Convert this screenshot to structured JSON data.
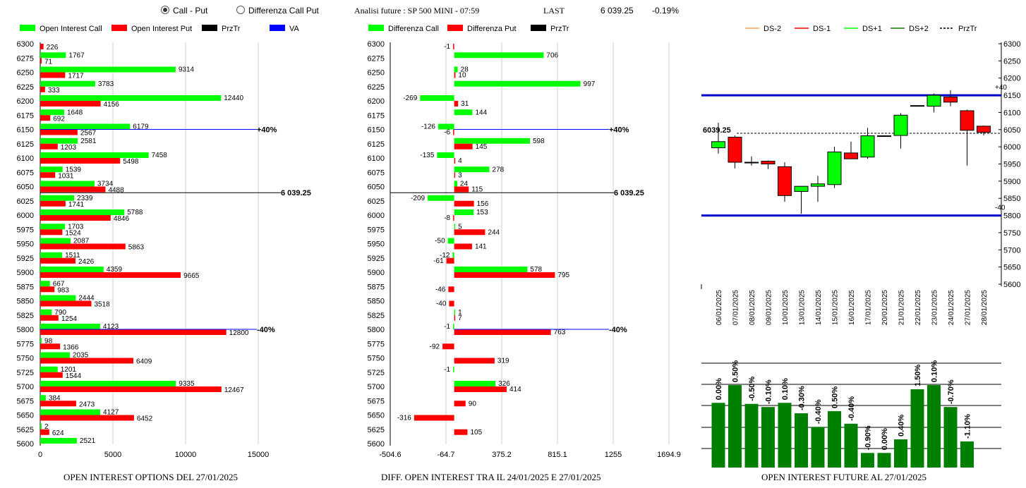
{
  "header": {
    "radio_options": [
      {
        "label": "Call - Put",
        "selected": true
      },
      {
        "label": "Differenza Call Put",
        "selected": false
      }
    ],
    "title": "Analisi future : SP 500 MINI - 07:59",
    "last_label": "LAST",
    "last_value": "6 039.25",
    "change": "-0.19%"
  },
  "footers": {
    "left": "OPEN INTEREST OPTIONS DEL 27/01/2025",
    "middle": "DIFF. OPEN INTEREST TRA IL 24/01/2025 E 27/01/2025",
    "right": "OPEN INTEREST FUTURE AL 27/01/2025"
  },
  "colors": {
    "call": "#00ff00",
    "put": "#ff0000",
    "price": "#000000",
    "va": "#0000ff",
    "oi_bar": "#008000",
    "level_line": "#0000cc"
  },
  "chart_data": [
    {
      "type": "bar",
      "orientation": "horizontal",
      "legend": [
        {
          "name": "Open Interest Call",
          "color": "#00ff00"
        },
        {
          "name": "Open Interest Put",
          "color": "#ff0000"
        },
        {
          "name": "PrzTr",
          "color": "#000000"
        },
        {
          "name": "VA",
          "color": "#0000ff"
        }
      ],
      "categories": [
        6300,
        6275,
        6250,
        6225,
        6200,
        6175,
        6150,
        6125,
        6100,
        6075,
        6050,
        6025,
        6000,
        5975,
        5950,
        5925,
        5900,
        5875,
        5850,
        5825,
        5800,
        5775,
        5750,
        5725,
        5700,
        5675,
        5650,
        5625,
        5600
      ],
      "series": [
        {
          "name": "Open Interest Call",
          "values": [
            null,
            1767,
            9314,
            3783,
            12440,
            1648,
            6179,
            2581,
            7458,
            1539,
            3734,
            2339,
            5788,
            1703,
            2087,
            1511,
            4359,
            667,
            2444,
            790,
            4123,
            98,
            2035,
            1201,
            9335,
            384,
            4127,
            2,
            2521
          ]
        },
        {
          "name": "Open Interest Put",
          "values": [
            226,
            71,
            1717,
            333,
            4156,
            692,
            2567,
            1203,
            5498,
            1031,
            4488,
            1741,
            4846,
            1524,
            5863,
            2426,
            9665,
            983,
            3518,
            1254,
            12800,
            1366,
            6409,
            1544,
            12467,
            2473,
            6452,
            624,
            null
          ]
        }
      ],
      "xlim": [
        0,
        17500
      ],
      "xticks": [
        "0",
        "5000",
        "10000",
        "15000"
      ],
      "price_line": {
        "value": 6039.25,
        "label": "6 039.25"
      },
      "va_lines": [
        {
          "strike": 6150,
          "label": "+40%"
        },
        {
          "strike": 5800,
          "label": "-40%"
        }
      ]
    },
    {
      "type": "bar",
      "orientation": "horizontal",
      "legend": [
        {
          "name": "Differenza Call",
          "color": "#00ff00"
        },
        {
          "name": "Differenza Put",
          "color": "#ff0000"
        },
        {
          "name": "PrzTr",
          "color": "#000000"
        }
      ],
      "categories": [
        6300,
        6275,
        6250,
        6225,
        6200,
        6175,
        6150,
        6125,
        6100,
        6075,
        6050,
        6025,
        6000,
        5975,
        5950,
        5925,
        5900,
        5875,
        5850,
        5825,
        5800,
        5775,
        5750,
        5725,
        5700,
        5675,
        5650,
        5625,
        5600
      ],
      "series": [
        {
          "name": "Differenza Call",
          "values": [
            null,
            706,
            28,
            997,
            -269,
            144,
            -126,
            598,
            -135,
            278,
            24,
            -209,
            153,
            5,
            -50,
            -12,
            578,
            null,
            null,
            1,
            -1,
            null,
            null,
            -1,
            326,
            null,
            null,
            null,
            null
          ]
        },
        {
          "name": "Differenza Put",
          "values": [
            -1,
            null,
            10,
            null,
            31,
            null,
            -6,
            145,
            4,
            3,
            115,
            156,
            -8,
            244,
            141,
            -61,
            795,
            -46,
            -40,
            7,
            763,
            -92,
            319,
            null,
            414,
            90,
            -316,
            105,
            null
          ]
        }
      ],
      "xlim": [
        -504.6,
        1694.9
      ],
      "xticks": [
        "-504.6",
        "-64.7",
        "375.2",
        "815.1",
        "1255",
        "1694.9"
      ],
      "price_line": {
        "value": 6039.25,
        "label": "6 039.25"
      },
      "va_lines": [
        {
          "strike": 6150,
          "label": "+40%"
        },
        {
          "strike": 5800,
          "label": "-40%"
        }
      ]
    },
    {
      "type": "candlestick",
      "legend": [
        {
          "name": "DS-2",
          "color": "#f4a460"
        },
        {
          "name": "DS-1",
          "color": "#ff0000"
        },
        {
          "name": "DS+1",
          "color": "#00ff00"
        },
        {
          "name": "DS+2",
          "color": "#008000"
        },
        {
          "name": "PrzTr",
          "color": "#000000"
        }
      ],
      "dates": [
        "06/01/2025",
        "07/01/2025",
        "08/01/2025",
        "09/01/2025",
        "10/01/2025",
        "13/01/2025",
        "14/01/2025",
        "15/01/2025",
        "16/01/2025",
        "17/01/2025",
        "20/01/2025",
        "21/01/2025",
        "22/01/2025",
        "23/01/2025",
        "24/01/2025",
        "27/01/2025",
        "28/01/2025"
      ],
      "ohlc": [
        [
          5997,
          6070,
          5980,
          6015
        ],
        [
          6028,
          6033,
          5937,
          5955
        ],
        [
          5955,
          5972,
          5945,
          5955
        ],
        [
          5958,
          5960,
          5935,
          5950
        ],
        [
          5942,
          5955,
          5840,
          5858
        ],
        [
          5870,
          5885,
          5805,
          5885
        ],
        [
          5885,
          5915,
          5840,
          5892
        ],
        [
          5890,
          6000,
          5880,
          5985
        ],
        [
          5982,
          6015,
          5968,
          5965
        ],
        [
          5970,
          6055,
          5965,
          6032
        ],
        [
          6032,
          6032,
          6032,
          6032
        ],
        [
          6033,
          6098,
          5995,
          6092
        ],
        [
          6120,
          6120,
          6120,
          6120
        ],
        [
          6118,
          6155,
          6100,
          6150
        ],
        [
          6145,
          6165,
          6118,
          6130
        ],
        [
          6105,
          6108,
          5945,
          6048
        ],
        [
          6060,
          6062,
          6033,
          6042
        ]
      ],
      "ylim": [
        5600,
        6300
      ],
      "yticks": [
        "5600",
        "5650",
        "5700",
        "5750",
        "5800",
        "5850",
        "5900",
        "5950",
        "6000",
        "6050",
        "6100",
        "6150",
        "6200",
        "6250",
        "6300"
      ],
      "price_line": {
        "value": 6039.25,
        "label": "6039.25"
      },
      "levels": [
        {
          "value": 6150,
          "label": "+40"
        },
        {
          "value": 5800,
          "label": "-40"
        }
      ]
    },
    {
      "type": "bar",
      "title": "OPEN INTEREST FUTURE AL 27/01/2025",
      "categories": [
        "06/01/2025",
        "07/01/2025",
        "08/01/2025",
        "09/01/2025",
        "10/01/2025",
        "13/01/2025",
        "14/01/2025",
        "15/01/2025",
        "16/01/2025",
        "17/01/2025",
        "20/01/2025",
        "21/01/2025",
        "22/01/2025",
        "23/01/2025",
        "24/01/2025",
        "27/01/2025"
      ],
      "labels": [
        "0.00%",
        "0.50%",
        "-0.50%",
        "-0.10%",
        "0.10%",
        "-0.30%",
        "-0.40%",
        "0.50%",
        "-0.40%",
        "-0.90%",
        "0.00%",
        "0.40%",
        "1.50%",
        "0.10%",
        "-0.70%",
        "-1.10%"
      ],
      "relative_heights": [
        0.62,
        0.79,
        0.61,
        0.58,
        0.62,
        0.52,
        0.39,
        0.54,
        0.42,
        0.14,
        0.14,
        0.27,
        0.75,
        0.79,
        0.58,
        0.25
      ]
    }
  ]
}
